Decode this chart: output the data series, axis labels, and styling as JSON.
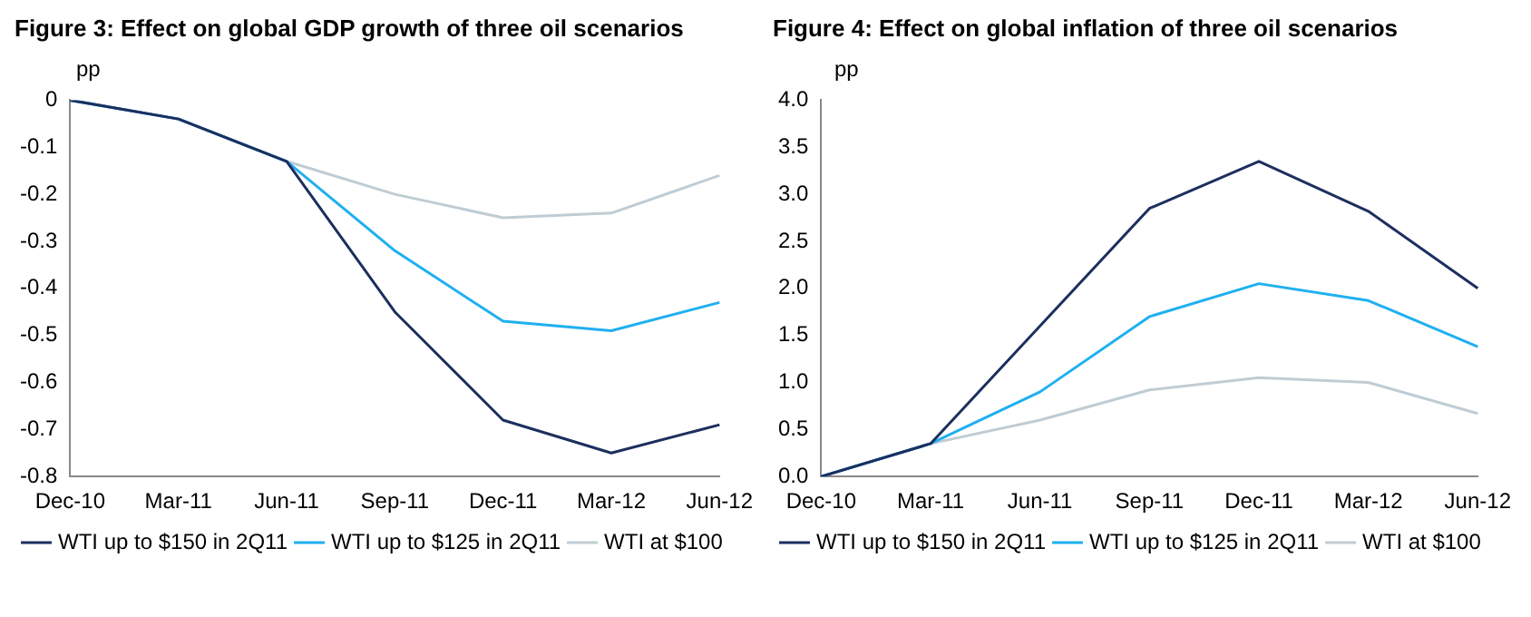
{
  "chart_data": [
    {
      "type": "line",
      "title": "Figure 3: Effect on global GDP growth of three oil scenarios",
      "ylabel": "pp",
      "categories": [
        "Dec-10",
        "Mar-11",
        "Jun-11",
        "Sep-11",
        "Dec-11",
        "Mar-12",
        "Jun-12"
      ],
      "series": [
        {
          "name": "WTI up to $150 in 2Q11",
          "color": "#1c2f5e",
          "values": [
            0,
            -0.04,
            -0.13,
            -0.45,
            -0.68,
            -0.75,
            -0.69
          ]
        },
        {
          "name": "WTI up to $125 in 2Q11",
          "color": "#1fb0f0",
          "values": [
            0,
            -0.04,
            -0.13,
            -0.32,
            -0.47,
            -0.49,
            -0.43
          ]
        },
        {
          "name": "WTI at $100",
          "color": "#c0ccd4",
          "values": [
            0,
            -0.04,
            -0.13,
            -0.2,
            -0.25,
            -0.24,
            -0.16
          ]
        }
      ],
      "ylim": [
        -0.8,
        0
      ],
      "yticks": [
        -0.8,
        -0.7,
        -0.6,
        -0.5,
        -0.4,
        -0.3,
        -0.2,
        -0.1,
        0
      ],
      "grid": false,
      "legend": "bottom",
      "marker": "none"
    },
    {
      "type": "line",
      "title": "Figure 4: Effect on global inflation of three oil scenarios",
      "ylabel": "pp",
      "categories": [
        "Dec-10",
        "Mar-11",
        "Jun-11",
        "Sep-11",
        "Dec-11",
        "Mar-12",
        "Jun-12"
      ],
      "series": [
        {
          "name": "WTI up to $150 in 2Q11",
          "color": "#1c2f5e",
          "values": [
            0,
            0.35,
            1.6,
            2.85,
            3.35,
            2.82,
            2.0
          ]
        },
        {
          "name": "WTI up to $125 in 2Q11",
          "color": "#1fb0f0",
          "values": [
            0,
            0.35,
            0.9,
            1.7,
            2.05,
            1.87,
            1.38
          ]
        },
        {
          "name": "WTI at $100",
          "color": "#c0ccd4",
          "values": [
            0,
            0.35,
            0.6,
            0.92,
            1.05,
            1.0,
            0.67
          ]
        }
      ],
      "ylim": [
        0,
        4
      ],
      "yticks": [
        {
          "value": 0,
          "label": "0.0"
        },
        {
          "value": 0.5,
          "label": "0.5"
        },
        {
          "value": 1,
          "label": "1.0"
        },
        {
          "value": 1.5,
          "label": "1.5"
        },
        {
          "value": 2,
          "label": "2.0"
        },
        {
          "value": 2.5,
          "label": "2.5"
        },
        {
          "value": 3,
          "label": "3.0"
        },
        {
          "value": 3.5,
          "label": "3.5"
        },
        {
          "value": 4,
          "label": "4.0"
        }
      ],
      "grid": false,
      "legend": "bottom",
      "marker": "none"
    }
  ]
}
